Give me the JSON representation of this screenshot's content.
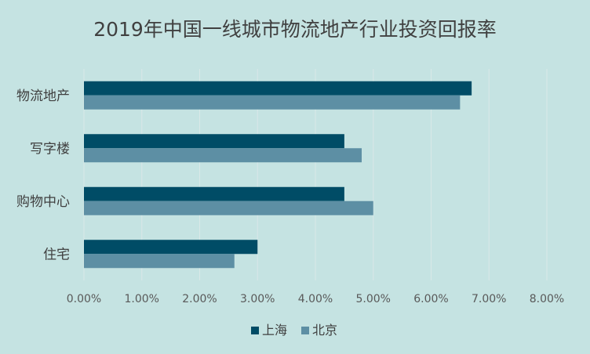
{
  "chart_data": {
    "type": "bar",
    "orientation": "horizontal",
    "title": "2019年中国一线城市物流地产行业投资回报率",
    "categories": [
      "物流地产",
      "写字楼",
      "购物中心",
      "住宅"
    ],
    "series": [
      {
        "name": "上海",
        "color": "#004c66",
        "values": [
          0.067,
          0.045,
          0.045,
          0.03
        ]
      },
      {
        "name": "北京",
        "color": "#5d8fa4",
        "values": [
          0.065,
          0.048,
          0.05,
          0.026
        ]
      }
    ],
    "xlim": [
      0,
      0.08
    ],
    "xticks": [
      "0.00%",
      "1.00%",
      "2.00%",
      "3.00%",
      "4.00%",
      "5.00%",
      "6.00%",
      "7.00%",
      "8.00%"
    ],
    "grid": true,
    "legend": "bottom"
  }
}
